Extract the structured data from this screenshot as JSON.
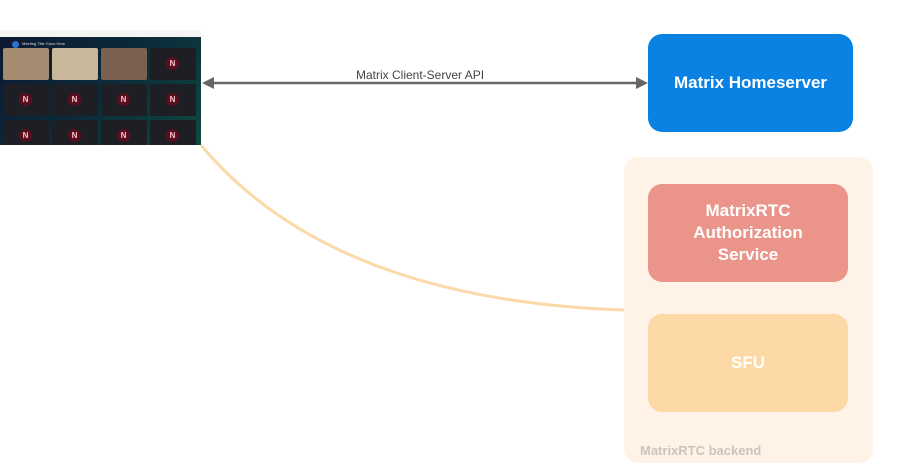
{
  "client": {
    "meeting_title": "Meeting Title Goes Here",
    "avatar_letter": "N"
  },
  "edge_label": "Matrix Client-Server API",
  "homeserver": {
    "label": "Matrix Homeserver",
    "color": "#0a82e4"
  },
  "backend": {
    "label": "MatrixRTC backend",
    "color": "#fff3e8",
    "auth": {
      "label": "MatrixRTC Authorization Service",
      "color": "#ea948a"
    },
    "sfu": {
      "label": "SFU",
      "color": "#fdd9a8"
    }
  },
  "connector_color": "#fbd9a8"
}
